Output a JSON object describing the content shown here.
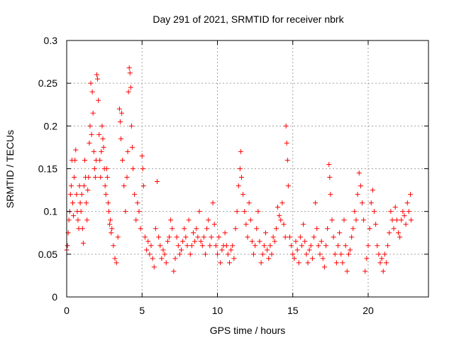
{
  "chart_data": {
    "type": "scatter",
    "title": "Day 291 of 2021, SRMTID for receiver nbrk",
    "xlabel": "GPS time / hours",
    "ylabel": "SRMTID / TECUs",
    "xlim": [
      0,
      24
    ],
    "ylim": [
      0,
      0.3
    ],
    "xticks": [
      0,
      5,
      10,
      15,
      20
    ],
    "xtick_labels": [
      "0",
      "5",
      "10",
      "15",
      "20"
    ],
    "yticks": [
      0,
      0.05,
      0.1,
      0.15,
      0.2,
      0.25,
      0.3
    ],
    "ytick_labels": [
      "0",
      "0.05",
      "0.1",
      "0.15",
      "0.2",
      "0.25",
      "0.3"
    ],
    "grid": true,
    "marker": "+",
    "color": "#ff0000",
    "series": [
      {
        "name": "SRMTID",
        "points": [
          [
            0.0,
            0.055
          ],
          [
            0.05,
            0.06
          ],
          [
            0.1,
            0.075
          ],
          [
            0.15,
            0.09
          ],
          [
            0.2,
            0.1
          ],
          [
            0.25,
            0.12
          ],
          [
            0.3,
            0.13
          ],
          [
            0.35,
            0.16
          ],
          [
            0.4,
            0.11
          ],
          [
            0.45,
            0.095
          ],
          [
            0.5,
            0.14
          ],
          [
            0.55,
            0.16
          ],
          [
            0.6,
            0.172
          ],
          [
            0.65,
            0.12
          ],
          [
            0.7,
            0.1
          ],
          [
            0.75,
            0.09
          ],
          [
            0.8,
            0.08
          ],
          [
            0.85,
            0.13
          ],
          [
            0.9,
            0.11
          ],
          [
            0.95,
            0.1
          ],
          [
            1.0,
            0.12
          ],
          [
            1.05,
            0.08
          ],
          [
            1.1,
            0.063
          ],
          [
            1.15,
            0.13
          ],
          [
            1.2,
            0.16
          ],
          [
            1.25,
            0.14
          ],
          [
            1.3,
            0.11
          ],
          [
            1.35,
            0.09
          ],
          [
            1.4,
            0.125
          ],
          [
            1.45,
            0.14
          ],
          [
            1.5,
            0.18
          ],
          [
            1.55,
            0.2
          ],
          [
            1.6,
            0.25
          ],
          [
            1.65,
            0.19
          ],
          [
            1.7,
            0.24
          ],
          [
            1.75,
            0.215
          ],
          [
            1.8,
            0.17
          ],
          [
            1.85,
            0.15
          ],
          [
            1.9,
            0.14
          ],
          [
            1.95,
            0.16
          ],
          [
            2.0,
            0.26
          ],
          [
            2.05,
            0.255
          ],
          [
            2.1,
            0.23
          ],
          [
            2.15,
            0.19
          ],
          [
            2.2,
            0.16
          ],
          [
            2.25,
            0.14
          ],
          [
            2.3,
            0.17
          ],
          [
            2.35,
            0.2
          ],
          [
            2.4,
            0.185
          ],
          [
            2.45,
            0.175
          ],
          [
            2.5,
            0.15
          ],
          [
            2.55,
            0.13
          ],
          [
            2.6,
            0.12
          ],
          [
            2.65,
            0.15
          ],
          [
            2.7,
            0.14
          ],
          [
            2.75,
            0.11
          ],
          [
            2.8,
            0.1
          ],
          [
            2.85,
            0.085
          ],
          [
            2.9,
            0.09
          ],
          [
            2.95,
            0.075
          ],
          [
            3.0,
            0.08
          ],
          [
            3.1,
            0.06
          ],
          [
            3.2,
            0.045
          ],
          [
            3.3,
            0.04
          ],
          [
            3.4,
            0.07
          ],
          [
            3.5,
            0.22
          ],
          [
            3.55,
            0.205
          ],
          [
            3.6,
            0.185
          ],
          [
            3.65,
            0.215
          ],
          [
            3.7,
            0.16
          ],
          [
            3.8,
            0.13
          ],
          [
            3.9,
            0.1
          ],
          [
            4.0,
            0.14
          ],
          [
            4.05,
            0.17
          ],
          [
            4.1,
            0.24
          ],
          [
            4.15,
            0.268
          ],
          [
            4.2,
            0.262
          ],
          [
            4.25,
            0.245
          ],
          [
            4.3,
            0.2
          ],
          [
            4.35,
            0.175
          ],
          [
            4.4,
            0.15
          ],
          [
            4.5,
            0.12
          ],
          [
            4.6,
            0.09
          ],
          [
            4.7,
            0.11
          ],
          [
            4.8,
            0.1
          ],
          [
            4.9,
            0.08
          ],
          [
            5.0,
            0.165
          ],
          [
            5.05,
            0.15
          ],
          [
            5.1,
            0.13
          ],
          [
            5.2,
            0.07
          ],
          [
            5.3,
            0.055
          ],
          [
            5.4,
            0.065
          ],
          [
            5.5,
            0.05
          ],
          [
            5.6,
            0.06
          ],
          [
            5.7,
            0.045
          ],
          [
            5.8,
            0.035
          ],
          [
            5.9,
            0.08
          ],
          [
            6.0,
            0.135
          ],
          [
            6.1,
            0.07
          ],
          [
            6.2,
            0.06
          ],
          [
            6.3,
            0.045
          ],
          [
            6.4,
            0.055
          ],
          [
            6.5,
            0.05
          ],
          [
            6.6,
            0.04
          ],
          [
            6.7,
            0.065
          ],
          [
            6.8,
            0.07
          ],
          [
            6.9,
            0.09
          ],
          [
            7.0,
            0.08
          ],
          [
            7.1,
            0.03
          ],
          [
            7.2,
            0.045
          ],
          [
            7.3,
            0.07
          ],
          [
            7.4,
            0.06
          ],
          [
            7.5,
            0.05
          ],
          [
            7.6,
            0.055
          ],
          [
            7.7,
            0.065
          ],
          [
            7.8,
            0.08
          ],
          [
            7.9,
            0.07
          ],
          [
            8.0,
            0.06
          ],
          [
            8.1,
            0.09
          ],
          [
            8.2,
            0.05
          ],
          [
            8.3,
            0.06
          ],
          [
            8.4,
            0.075
          ],
          [
            8.5,
            0.065
          ],
          [
            8.6,
            0.08
          ],
          [
            8.7,
            0.07
          ],
          [
            8.8,
            0.1
          ],
          [
            8.9,
            0.065
          ],
          [
            9.0,
            0.06
          ],
          [
            9.1,
            0.07
          ],
          [
            9.2,
            0.05
          ],
          [
            9.3,
            0.08
          ],
          [
            9.4,
            0.09
          ],
          [
            9.5,
            0.06
          ],
          [
            9.6,
            0.07
          ],
          [
            9.7,
            0.11
          ],
          [
            9.8,
            0.085
          ],
          [
            9.9,
            0.06
          ],
          [
            10.0,
            0.05
          ],
          [
            10.1,
            0.07
          ],
          [
            10.2,
            0.04
          ],
          [
            10.3,
            0.055
          ],
          [
            10.4,
            0.06
          ],
          [
            10.5,
            0.075
          ],
          [
            10.6,
            0.06
          ],
          [
            10.7,
            0.05
          ],
          [
            10.8,
            0.04
          ],
          [
            10.9,
            0.055
          ],
          [
            11.0,
            0.06
          ],
          [
            11.1,
            0.045
          ],
          [
            11.2,
            0.08
          ],
          [
            11.3,
            0.1
          ],
          [
            11.4,
            0.13
          ],
          [
            11.5,
            0.15
          ],
          [
            11.55,
            0.17
          ],
          [
            11.6,
            0.14
          ],
          [
            11.7,
            0.12
          ],
          [
            11.8,
            0.1
          ],
          [
            11.9,
            0.085
          ],
          [
            12.0,
            0.07
          ],
          [
            12.1,
            0.11
          ],
          [
            12.2,
            0.09
          ],
          [
            12.3,
            0.065
          ],
          [
            12.4,
            0.05
          ],
          [
            12.5,
            0.06
          ],
          [
            12.6,
            0.08
          ],
          [
            12.7,
            0.1
          ],
          [
            12.8,
            0.065
          ],
          [
            12.9,
            0.04
          ],
          [
            13.0,
            0.05
          ],
          [
            13.1,
            0.06
          ],
          [
            13.2,
            0.075
          ],
          [
            13.3,
            0.055
          ],
          [
            13.4,
            0.045
          ],
          [
            13.5,
            0.06
          ],
          [
            13.6,
            0.05
          ],
          [
            13.7,
            0.07
          ],
          [
            13.8,
            0.065
          ],
          [
            13.9,
            0.08
          ],
          [
            14.0,
            0.105
          ],
          [
            14.1,
            0.095
          ],
          [
            14.2,
            0.09
          ],
          [
            14.3,
            0.11
          ],
          [
            14.4,
            0.085
          ],
          [
            14.5,
            0.07
          ],
          [
            14.55,
            0.2
          ],
          [
            14.6,
            0.18
          ],
          [
            14.65,
            0.16
          ],
          [
            14.7,
            0.13
          ],
          [
            14.8,
            0.07
          ],
          [
            14.9,
            0.06
          ],
          [
            15.0,
            0.05
          ],
          [
            15.1,
            0.045
          ],
          [
            15.2,
            0.065
          ],
          [
            15.3,
            0.055
          ],
          [
            15.4,
            0.04
          ],
          [
            15.5,
            0.07
          ],
          [
            15.6,
            0.06
          ],
          [
            15.7,
            0.085
          ],
          [
            15.8,
            0.065
          ],
          [
            15.9,
            0.05
          ],
          [
            16.0,
            0.04
          ],
          [
            16.1,
            0.055
          ],
          [
            16.2,
            0.06
          ],
          [
            16.3,
            0.045
          ],
          [
            16.4,
            0.07
          ],
          [
            16.5,
            0.11
          ],
          [
            16.6,
            0.08
          ],
          [
            16.7,
            0.06
          ],
          [
            16.8,
            0.05
          ],
          [
            16.9,
            0.065
          ],
          [
            17.0,
            0.045
          ],
          [
            17.1,
            0.035
          ],
          [
            17.2,
            0.06
          ],
          [
            17.3,
            0.08
          ],
          [
            17.4,
            0.155
          ],
          [
            17.45,
            0.14
          ],
          [
            17.5,
            0.12
          ],
          [
            17.6,
            0.09
          ],
          [
            17.7,
            0.07
          ],
          [
            17.8,
            0.05
          ],
          [
            17.9,
            0.04
          ],
          [
            18.0,
            0.06
          ],
          [
            18.1,
            0.075
          ],
          [
            18.2,
            0.05
          ],
          [
            18.3,
            0.04
          ],
          [
            18.4,
            0.09
          ],
          [
            18.5,
            0.06
          ],
          [
            18.6,
            0.03
          ],
          [
            18.7,
            0.05
          ],
          [
            18.8,
            0.055
          ],
          [
            18.9,
            0.07
          ],
          [
            19.0,
            0.08
          ],
          [
            19.1,
            0.1
          ],
          [
            19.2,
            0.09
          ],
          [
            19.3,
            0.12
          ],
          [
            19.4,
            0.145
          ],
          [
            19.5,
            0.13
          ],
          [
            19.6,
            0.11
          ],
          [
            19.7,
            0.09
          ],
          [
            19.8,
            0.03
          ],
          [
            19.9,
            0.045
          ],
          [
            20.0,
            0.06
          ],
          [
            20.1,
            0.08
          ],
          [
            20.2,
            0.11
          ],
          [
            20.3,
            0.125
          ],
          [
            20.4,
            0.1
          ],
          [
            20.5,
            0.085
          ],
          [
            20.6,
            0.06
          ],
          [
            20.7,
            0.05
          ],
          [
            20.8,
            0.04
          ],
          [
            20.9,
            0.045
          ],
          [
            21.0,
            0.03
          ],
          [
            21.1,
            0.05
          ],
          [
            21.2,
            0.04
          ],
          [
            21.3,
            0.06
          ],
          [
            21.4,
            0.075
          ],
          [
            21.5,
            0.1
          ],
          [
            21.6,
            0.09
          ],
          [
            21.7,
            0.08
          ],
          [
            21.8,
            0.105
          ],
          [
            21.9,
            0.09
          ],
          [
            22.0,
            0.075
          ],
          [
            22.1,
            0.07
          ],
          [
            22.2,
            0.09
          ],
          [
            22.3,
            0.1
          ],
          [
            22.4,
            0.095
          ],
          [
            22.5,
            0.085
          ],
          [
            22.6,
            0.11
          ],
          [
            22.7,
            0.1
          ],
          [
            22.8,
            0.12
          ],
          [
            22.85,
            0.09
          ]
        ]
      }
    ]
  }
}
